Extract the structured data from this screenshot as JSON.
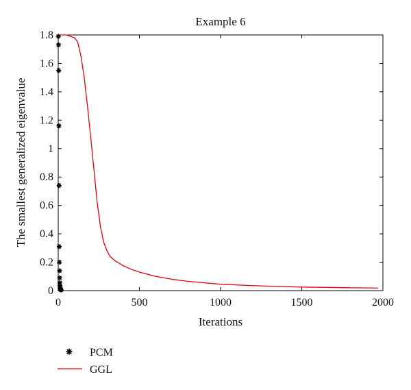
{
  "chart_data": {
    "type": "line",
    "title": "Example 6",
    "xlabel": "Iterations",
    "ylabel": "The smallest generalized eigenvalue",
    "xlim": [
      0,
      2000
    ],
    "ylim": [
      0,
      1.8
    ],
    "xticks": [
      "0",
      "500",
      "1000",
      "1500",
      "2000"
    ],
    "yticks": [
      "0",
      "0.2",
      "0.4",
      "0.6",
      "0.8",
      "1",
      "1.2",
      "1.4",
      "1.6",
      "1.8"
    ],
    "grid": false,
    "legend_position": "below-left",
    "series": [
      {
        "name": "PCM",
        "style": "markers",
        "marker": "asterisk",
        "color": "#000000",
        "x": [
          1,
          2,
          3,
          4,
          5,
          6,
          7,
          8,
          9,
          10,
          11,
          12,
          13,
          14,
          15,
          16,
          17,
          18
        ],
        "y": [
          1.79,
          1.73,
          1.55,
          1.16,
          0.74,
          0.31,
          0.2,
          0.14,
          0.09,
          0.055,
          0.035,
          0.02,
          0.012,
          0.009,
          0.007,
          0.006,
          0.005,
          0.005
        ]
      },
      {
        "name": "GGL",
        "style": "line",
        "color": "#e3000f",
        "x": [
          0,
          50,
          100,
          120,
          140,
          160,
          180,
          200,
          220,
          240,
          260,
          280,
          300,
          320,
          350,
          400,
          450,
          500,
          600,
          700,
          800,
          1000,
          1200,
          1500,
          1800,
          1970
        ],
        "y": [
          1.8,
          1.8,
          1.78,
          1.75,
          1.65,
          1.5,
          1.3,
          1.08,
          0.85,
          0.62,
          0.45,
          0.34,
          0.28,
          0.24,
          0.21,
          0.175,
          0.15,
          0.13,
          0.1,
          0.08,
          0.065,
          0.045,
          0.035,
          0.025,
          0.02,
          0.018
        ]
      }
    ]
  }
}
